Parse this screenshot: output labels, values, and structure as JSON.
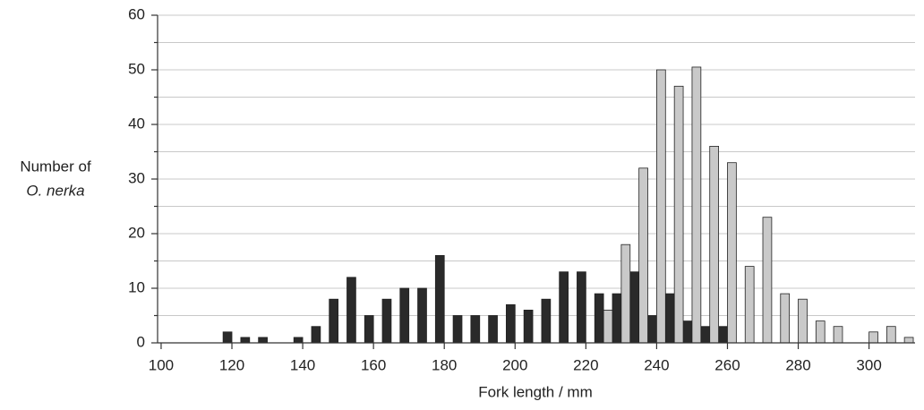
{
  "chart_data": {
    "type": "bar",
    "xlabel": "Fork length / mm",
    "ylabel": [
      "Number of",
      "O. nerka"
    ],
    "x": [
      100,
      105,
      110,
      115,
      120,
      125,
      130,
      135,
      140,
      145,
      150,
      155,
      160,
      165,
      170,
      175,
      180,
      185,
      190,
      195,
      200,
      205,
      210,
      215,
      220,
      225,
      230,
      235,
      240,
      245,
      250,
      255,
      260,
      265,
      270,
      275,
      280,
      285,
      290,
      295,
      300,
      305,
      310
    ],
    "series": [
      {
        "color": "#2a2a2a",
        "values": [
          0,
          0,
          0,
          0,
          2,
          1,
          1,
          0,
          1,
          3,
          8,
          12,
          5,
          8,
          10,
          10,
          16,
          5,
          5,
          5,
          7,
          6,
          8,
          13,
          13,
          9,
          9,
          13,
          5,
          9,
          4,
          3,
          3,
          0,
          0,
          0,
          0,
          0,
          0,
          0,
          0,
          0,
          0
        ]
      },
      {
        "color": "#c9c9c9",
        "values": [
          0,
          0,
          0,
          0,
          0,
          0,
          0,
          0,
          0,
          0,
          0,
          0,
          0,
          0,
          0,
          0,
          0,
          0,
          0,
          0,
          0,
          0,
          0,
          0,
          0,
          6,
          18,
          32,
          50,
          47,
          50.5,
          36,
          33,
          14,
          23,
          9,
          8,
          4,
          3,
          0,
          2,
          3,
          1
        ]
      }
    ],
    "xlim": [
      99,
      313
    ],
    "xticks": [
      100,
      120,
      140,
      160,
      180,
      200,
      220,
      240,
      260,
      280,
      300
    ],
    "ylim": [
      0,
      60
    ],
    "yticks": [
      0,
      10,
      20,
      30,
      40,
      50,
      60
    ],
    "minor_yticks": [
      5,
      15,
      25,
      35,
      45,
      55
    ],
    "grid": true
  }
}
